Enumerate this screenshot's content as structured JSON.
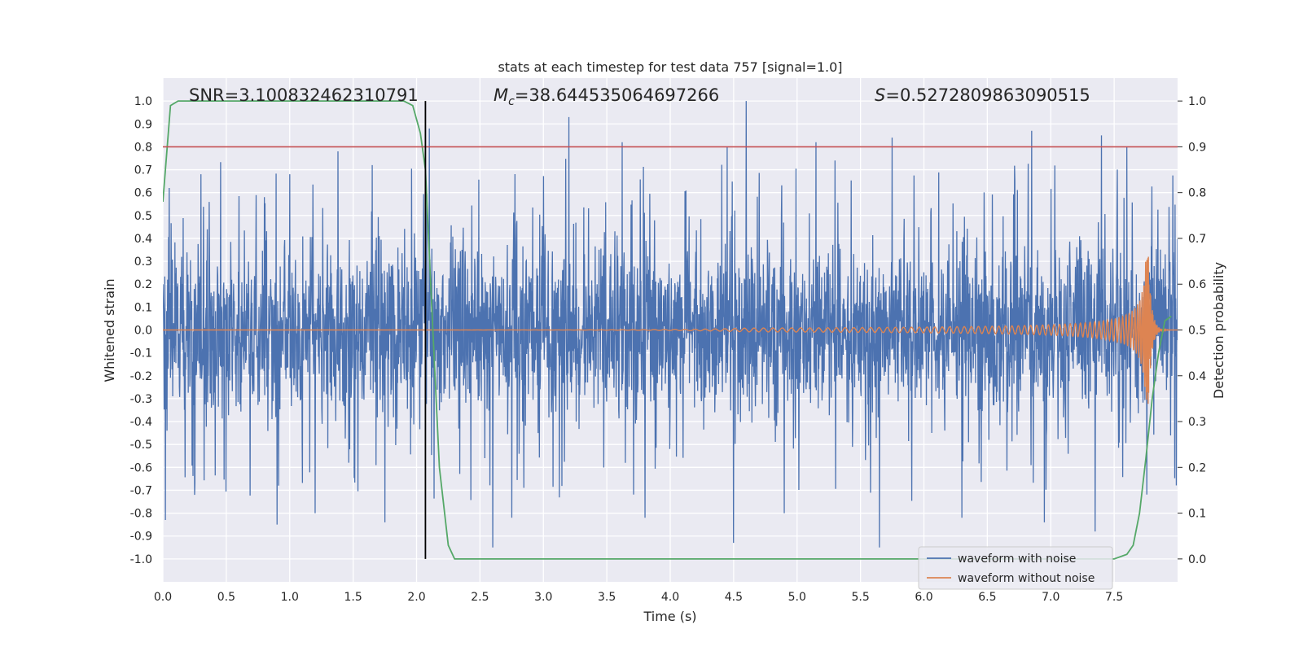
{
  "chart_data": {
    "type": "line",
    "title": "stats at each timestep for test data 757 [signal=1.0]",
    "xlabel": "Time (s)",
    "ylabel": "Whitened strain",
    "y2label": "Detection probability",
    "xlim": [
      0.0,
      8.0
    ],
    "ylim": [
      -1.1,
      1.1
    ],
    "y2lim": [
      -0.05,
      1.05
    ],
    "xticks": [
      "0.0",
      "0.5",
      "1.0",
      "1.5",
      "2.0",
      "2.5",
      "3.0",
      "3.5",
      "4.0",
      "4.5",
      "5.0",
      "5.5",
      "6.0",
      "6.5",
      "7.0",
      "7.5"
    ],
    "yticks": [
      "1.0",
      "0.9",
      "0.8",
      "0.7",
      "0.6",
      "0.5",
      "0.4",
      "0.3",
      "0.2",
      "0.1",
      "0.0",
      "-0.1",
      "-0.2",
      "-0.3",
      "-0.4",
      "-0.5",
      "-0.6",
      "-0.7",
      "-0.8",
      "-0.9",
      "-1.0"
    ],
    "y2ticks": [
      "0.0",
      "0.1",
      "0.2",
      "0.3",
      "0.4",
      "0.5",
      "0.6",
      "0.7",
      "0.8",
      "0.9",
      "1.0"
    ],
    "grid": true,
    "legend_position": "lower-right",
    "annotations": {
      "snr": "SNR=3.100832462310791",
      "mc_symbol": "M",
      "mc_sub": "c",
      "mc_value": "=38.644535064697266",
      "s_symbol": "S",
      "s_value": "=0.5272809863090515"
    },
    "threshold_probability": 0.9,
    "marker_time": 2.07,
    "series": [
      {
        "name": "waveform with noise",
        "color": "#4c72b0",
        "style": "dense noise roughly within ±0.5, peaks near ±1.0",
        "peaks_high": [
          [
            0.05,
            0.62
          ],
          [
            0.3,
            0.68
          ],
          [
            0.8,
            0.58
          ],
          [
            1.0,
            0.68
          ],
          [
            1.38,
            0.78
          ],
          [
            1.65,
            0.72
          ],
          [
            2.1,
            0.88
          ],
          [
            2.6,
            0.85
          ],
          [
            2.75,
            0.92
          ],
          [
            3.2,
            0.93
          ],
          [
            3.62,
            0.82
          ],
          [
            4.6,
            1.0
          ],
          [
            4.45,
            0.8
          ],
          [
            5.15,
            0.82
          ],
          [
            5.3,
            0.74
          ],
          [
            5.75,
            0.84
          ],
          [
            6.3,
            0.9
          ],
          [
            6.85,
            0.87
          ],
          [
            7.4,
            0.85
          ],
          [
            7.6,
            0.8
          ]
        ],
        "peaks_low": [
          [
            0.02,
            -0.83
          ],
          [
            0.25,
            -0.72
          ],
          [
            0.9,
            -0.85
          ],
          [
            1.2,
            -0.8
          ],
          [
            1.75,
            -0.84
          ],
          [
            2.6,
            -0.95
          ],
          [
            2.75,
            -0.82
          ],
          [
            3.8,
            -0.82
          ],
          [
            4.5,
            -0.93
          ],
          [
            4.9,
            -0.8
          ],
          [
            5.65,
            -0.95
          ],
          [
            6.3,
            -0.82
          ],
          [
            6.95,
            -0.84
          ],
          [
            7.35,
            -0.88
          ]
        ]
      },
      {
        "name": "waveform without noise",
        "color": "#dd8452",
        "style": "chirp, amplitude rising toward merger",
        "merger_time": 7.77,
        "peak_amplitude": 0.32,
        "start_time": 4.6
      },
      {
        "name": "detection probability",
        "color": "#55a868",
        "axis": "right",
        "x": [
          0.0,
          0.06,
          0.12,
          0.2,
          0.5,
          1.0,
          1.5,
          1.9,
          1.97,
          2.03,
          2.07,
          2.12,
          2.18,
          2.25,
          2.3,
          2.4,
          3.0,
          4.0,
          5.0,
          6.0,
          7.0,
          7.5,
          7.6,
          7.65,
          7.7,
          7.75,
          7.8,
          7.85,
          7.9,
          7.95
        ],
        "y": [
          0.78,
          0.99,
          1.0,
          1.0,
          1.0,
          1.0,
          1.0,
          1.0,
          0.99,
          0.93,
          0.85,
          0.55,
          0.2,
          0.03,
          0.0,
          0.0,
          0.0,
          0.0,
          0.0,
          0.0,
          0.0,
          0.0,
          0.01,
          0.03,
          0.1,
          0.22,
          0.35,
          0.45,
          0.52,
          0.53
        ]
      }
    ]
  }
}
